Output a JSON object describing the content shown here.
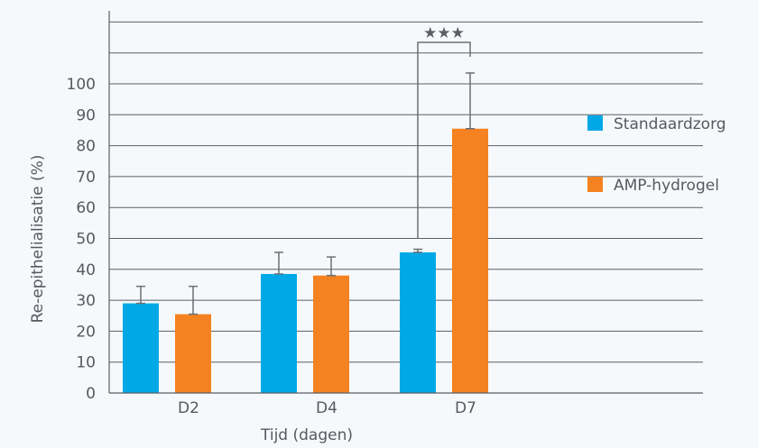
{
  "chart_data": {
    "type": "bar",
    "categories": [
      "D2",
      "D4",
      "D7"
    ],
    "series": [
      {
        "name": "Standaardzorg",
        "values": [
          29,
          38.5,
          45.5
        ],
        "errors": [
          5.5,
          7,
          1
        ],
        "color": "#00a9e6"
      },
      {
        "name": "AMP-hydrogel",
        "values": [
          25.5,
          38,
          85.5
        ],
        "errors": [
          9,
          6,
          18
        ],
        "color": "#f58220"
      }
    ],
    "title": "",
    "xlabel": "Tijd (dagen)",
    "ylabel": "Re-epithelialisatie (%)",
    "ylim": [
      0,
      120
    ],
    "yticks": [
      0,
      10,
      20,
      30,
      40,
      50,
      60,
      70,
      80,
      90,
      100
    ],
    "grid": true,
    "legend_position": "right",
    "annotations": [
      {
        "text": "★★★",
        "category": "D7",
        "between": [
          "Standaardzorg",
          "AMP-hydrogel"
        ]
      }
    ]
  }
}
